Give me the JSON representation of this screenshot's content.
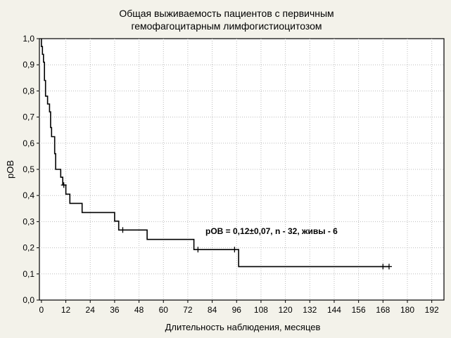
{
  "chart_data": {
    "type": "line",
    "title_lines": [
      "Общая выживаемость пациентов с первичным",
      "гемофагоцитарным лимфогистиоцитозом"
    ],
    "xlabel": "Длительность наблюдения, месяцев",
    "ylabel": "pOB",
    "xlim": [
      -1,
      198
    ],
    "ylim": [
      0,
      1
    ],
    "x_ticks": [
      0,
      12,
      24,
      36,
      48,
      60,
      72,
      84,
      96,
      108,
      120,
      132,
      144,
      156,
      168,
      180,
      192
    ],
    "y_ticks": [
      "0,0",
      "0,1",
      "0,2",
      "0,3",
      "0,4",
      "0,5",
      "0,6",
      "0,7",
      "0,8",
      "0,9",
      "1,0"
    ],
    "grid": true,
    "annotation": "pOB = 0,12±0,07, n - 32, живы - 6",
    "series": [
      {
        "step_curve": [
          [
            0,
            1.0
          ],
          [
            0,
            0.97
          ],
          [
            0.5,
            0.97
          ],
          [
            0.5,
            0.94
          ],
          [
            1,
            0.94
          ],
          [
            1,
            0.91
          ],
          [
            1.5,
            0.91
          ],
          [
            1.5,
            0.84
          ],
          [
            2,
            0.84
          ],
          [
            2,
            0.78
          ],
          [
            3,
            0.78
          ],
          [
            3,
            0.75
          ],
          [
            4,
            0.75
          ],
          [
            4,
            0.72
          ],
          [
            4.5,
            0.72
          ],
          [
            4.5,
            0.66
          ],
          [
            5,
            0.66
          ],
          [
            5,
            0.625
          ],
          [
            6.5,
            0.625
          ],
          [
            6.5,
            0.56
          ],
          [
            7,
            0.56
          ],
          [
            7,
            0.5
          ],
          [
            9.5,
            0.5
          ],
          [
            9.5,
            0.47
          ],
          [
            10.5,
            0.47
          ],
          [
            10.5,
            0.44
          ],
          [
            12,
            0.44
          ],
          [
            12,
            0.405
          ],
          [
            14,
            0.405
          ],
          [
            14,
            0.37
          ],
          [
            20,
            0.37
          ],
          [
            20,
            0.335
          ],
          [
            36,
            0.335
          ],
          [
            36,
            0.302
          ],
          [
            38,
            0.302
          ],
          [
            38,
            0.268
          ],
          [
            52,
            0.268
          ],
          [
            52,
            0.232
          ],
          [
            75,
            0.232
          ],
          [
            75,
            0.193
          ],
          [
            97,
            0.193
          ],
          [
            97,
            0.128
          ],
          [
            171,
            0.128
          ]
        ],
        "censored": [
          [
            11,
            0.44
          ],
          [
            40,
            0.268
          ],
          [
            77,
            0.193
          ],
          [
            95,
            0.193
          ],
          [
            168,
            0.128
          ],
          [
            171,
            0.128
          ]
        ]
      }
    ]
  }
}
